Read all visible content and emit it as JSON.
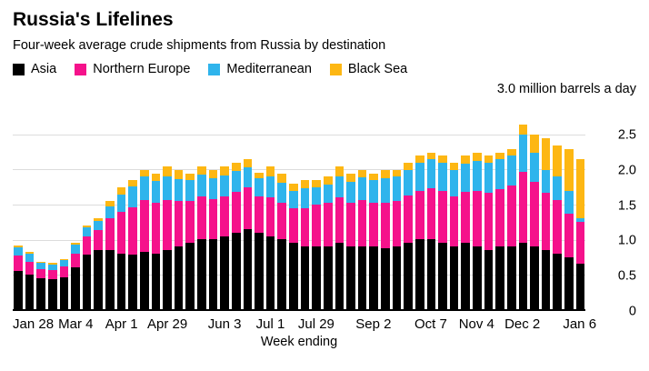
{
  "chart_data": {
    "type": "bar",
    "stacked": true,
    "title": "Russia's Lifelines",
    "subtitle": "Four-week average crude shipments from Russia by destination",
    "unit_label": "3.0 million barrels a day",
    "xlabel": "Week ending",
    "ylim": [
      0,
      3.0
    ],
    "yticks": [
      0,
      0.5,
      1.0,
      1.5,
      2.0,
      2.5
    ],
    "ytick_labels": [
      "0",
      "0.5",
      "1.0",
      "1.5",
      "2.0",
      "2.5"
    ],
    "grid": true,
    "legend_position": "top",
    "n_bars": 50,
    "xticks": [
      {
        "index": 0,
        "label": "Jan 28"
      },
      {
        "index": 5,
        "label": "Mar 4"
      },
      {
        "index": 9,
        "label": "Apr 1"
      },
      {
        "index": 13,
        "label": "Apr 29"
      },
      {
        "index": 18,
        "label": "Jun 3"
      },
      {
        "index": 22,
        "label": "Jul 1"
      },
      {
        "index": 26,
        "label": "Jul 29"
      },
      {
        "index": 31,
        "label": "Sep 2"
      },
      {
        "index": 36,
        "label": "Oct 7"
      },
      {
        "index": 40,
        "label": "Nov 4"
      },
      {
        "index": 44,
        "label": "Dec 2"
      },
      {
        "index": 49,
        "label": "Jan 6"
      }
    ],
    "series": [
      {
        "name": "Asia",
        "color": "#000000",
        "values": [
          0.55,
          0.5,
          0.45,
          0.43,
          0.46,
          0.6,
          0.78,
          0.85,
          0.85,
          0.8,
          0.78,
          0.82,
          0.8,
          0.85,
          0.9,
          0.95,
          1.0,
          1.0,
          1.05,
          1.1,
          1.15,
          1.1,
          1.05,
          1.0,
          0.95,
          0.9,
          0.9,
          0.9,
          0.95,
          0.9,
          0.9,
          0.9,
          0.88,
          0.9,
          0.95,
          1.0,
          1.0,
          0.95,
          0.9,
          0.95,
          0.9,
          0.85,
          0.9,
          0.9,
          0.95,
          0.9,
          0.85,
          0.8,
          0.75,
          0.65
        ]
      },
      {
        "name": "Northern Europe",
        "color": "#f5128b",
        "values": [
          0.22,
          0.18,
          0.13,
          0.13,
          0.15,
          0.2,
          0.27,
          0.28,
          0.45,
          0.6,
          0.68,
          0.75,
          0.72,
          0.72,
          0.65,
          0.6,
          0.62,
          0.58,
          0.57,
          0.58,
          0.6,
          0.52,
          0.55,
          0.52,
          0.5,
          0.55,
          0.6,
          0.62,
          0.65,
          0.62,
          0.66,
          0.63,
          0.64,
          0.65,
          0.68,
          0.7,
          0.74,
          0.74,
          0.72,
          0.73,
          0.8,
          0.82,
          0.82,
          0.87,
          1.02,
          0.92,
          0.82,
          0.77,
          0.62,
          0.6
        ]
      },
      {
        "name": "Mediterranean",
        "color": "#2fb4ec",
        "values": [
          0.12,
          0.11,
          0.08,
          0.08,
          0.09,
          0.12,
          0.12,
          0.13,
          0.18,
          0.25,
          0.3,
          0.33,
          0.32,
          0.33,
          0.32,
          0.3,
          0.31,
          0.3,
          0.3,
          0.3,
          0.28,
          0.26,
          0.31,
          0.29,
          0.25,
          0.28,
          0.25,
          0.27,
          0.3,
          0.31,
          0.33,
          0.32,
          0.36,
          0.35,
          0.37,
          0.4,
          0.41,
          0.41,
          0.38,
          0.41,
          0.43,
          0.43,
          0.43,
          0.43,
          0.53,
          0.43,
          0.33,
          0.33,
          0.33,
          0.05
        ]
      },
      {
        "name": "Black Sea",
        "color": "#fdb713",
        "values": [
          0.03,
          0.03,
          0.02,
          0.02,
          0.02,
          0.03,
          0.03,
          0.04,
          0.07,
          0.1,
          0.09,
          0.1,
          0.11,
          0.15,
          0.13,
          0.1,
          0.12,
          0.12,
          0.13,
          0.12,
          0.12,
          0.08,
          0.14,
          0.14,
          0.1,
          0.12,
          0.1,
          0.11,
          0.15,
          0.12,
          0.11,
          0.1,
          0.12,
          0.1,
          0.1,
          0.1,
          0.1,
          0.1,
          0.1,
          0.11,
          0.12,
          0.1,
          0.1,
          0.1,
          0.15,
          0.25,
          0.45,
          0.45,
          0.6,
          0.85
        ]
      }
    ]
  }
}
